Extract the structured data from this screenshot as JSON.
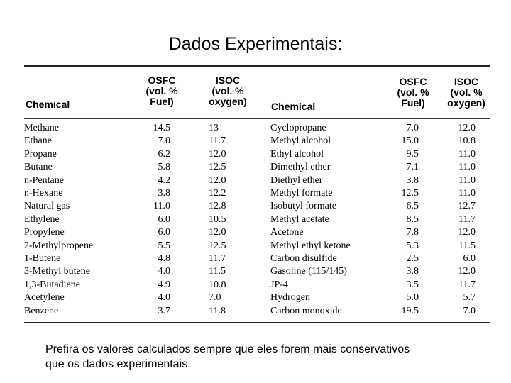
{
  "title": "Dados Experimentais:",
  "table": {
    "headers": {
      "chemical_left": "Chemical",
      "osfc_left": [
        "OSFC",
        "(vol. %",
        "Fuel)"
      ],
      "isoc_left": [
        "ISOC",
        "(vol. %",
        "oxygen)"
      ],
      "chemical_right": "Chemical",
      "osfc_right": [
        "OSFC",
        "(vol. %",
        "Fuel)"
      ],
      "isoc_right": [
        "ISOC",
        "(vol. %",
        "oxygen)"
      ]
    },
    "rows": [
      {
        "c1": "Methane",
        "o1": "14.5",
        "i1": "13",
        "c2": "Cyclopropane",
        "o2": "7.0",
        "i2": "12.0"
      },
      {
        "c1": "Ethane",
        "o1": "7.0",
        "i1": "11.7",
        "c2": "Methyl alcohol",
        "o2": "15.0",
        "i2": "10.8"
      },
      {
        "c1": "Propane",
        "o1": "6.2",
        "i1": "12.0",
        "c2": "Ethyl alcohol",
        "o2": "9.5",
        "i2": "11.0"
      },
      {
        "c1": "Butane",
        "o1": "5.8",
        "i1": "12.5",
        "c2": "Dimethyl ether",
        "o2": "7.1",
        "i2": "11.0"
      },
      {
        "c1": "n-Pentane",
        "o1": "4.2",
        "i1": "12.0",
        "c2": "Diethyl ether",
        "o2": "3.8",
        "i2": "11.0"
      },
      {
        "c1": "n-Hexane",
        "o1": "3.8",
        "i1": "12.2",
        "c2": "Methyl formate",
        "o2": "12.5",
        "i2": "11.0"
      },
      {
        "c1": "Natural gas",
        "o1": "11.0",
        "i1": "12.8",
        "c2": "Isobutyl formate",
        "o2": "6.5",
        "i2": "12.7"
      },
      {
        "c1": "Ethylene",
        "o1": "6.0",
        "i1": "10.5",
        "c2": "Methyl acetate",
        "o2": "8.5",
        "i2": "11.7"
      },
      {
        "c1": "Propylene",
        "o1": "6.0",
        "i1": "12.0",
        "c2": "Acetone",
        "o2": "7.8",
        "i2": "12.0"
      },
      {
        "c1": "2-Methylpropene",
        "o1": "5.5",
        "i1": "12.5",
        "c2": "Methyl ethyl ketone",
        "o2": "5.3",
        "i2": "11.5"
      },
      {
        "c1": "1-Butene",
        "o1": "4.8",
        "i1": "11.7",
        "c2": "Carbon disulfide",
        "o2": "2.5",
        "i2": "6.0"
      },
      {
        "c1": "3-Methyl butene",
        "o1": "4.0",
        "i1": "11.5",
        "c2": "Gasoline (115/145)",
        "o2": "3.8",
        "i2": "12.0"
      },
      {
        "c1": "1,3-Butadiene",
        "o1": "4.9",
        "i1": "10.8",
        "c2": "JP-4",
        "o2": "3.5",
        "i2": "11.7"
      },
      {
        "c1": "Acetylene",
        "o1": "4.0",
        "i1": "7.0",
        "c2": "Hydrogen",
        "o2": "5.0",
        "i2": "5.7"
      },
      {
        "c1": "Benzene",
        "o1": "3.7",
        "i1": "11.8",
        "c2": "Carbon monoxide",
        "o2": "19.5",
        "i2": "7.0"
      }
    ]
  },
  "footer": {
    "line1": "Prefira os valores calculados sempre que eles forem mais conservativos",
    "line2": "que os dados experimentais."
  }
}
